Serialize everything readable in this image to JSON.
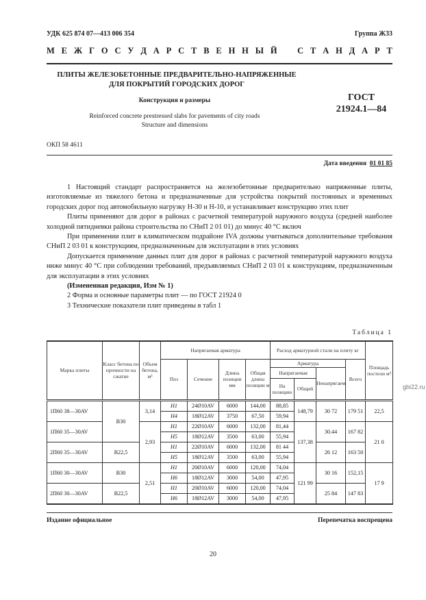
{
  "header": {
    "udk": "УДК 625 874 07—413 006 354",
    "group": "Группа Ж33",
    "standard_words": [
      "М",
      "Е",
      "Ж",
      "Г",
      "О",
      "С",
      "У",
      "Д",
      "А",
      "Р",
      "С",
      "Т",
      "В",
      "Е",
      "Н",
      "Н",
      "Ы",
      "Й",
      "",
      "",
      "С",
      "Т",
      "А",
      "Н",
      "Д",
      "А",
      "Р",
      "Т"
    ],
    "title_line1": "ПЛИТЫ ЖЕЛЕЗОБЕТОННЫЕ ПРЕДВАРИТЕЛЬНО-НАПРЯЖЕННЫЕ",
    "title_line2": "ДЛЯ ПОКРЫТИЙ ГОРОДСКИХ ДОРОГ",
    "subtitle": "Конструкция и размеры",
    "gost_label": "ГОСТ",
    "gost_number": "21924.1—84",
    "english_line1": "Reinforced concrete prestressed slabs for pavements of city roads",
    "english_line2": "Structure and dimensions",
    "okp": "ОКП 58 4611",
    "date_label": "Дата введения",
    "date_value": "01 01 85"
  },
  "body": {
    "p1": "1 Настоящий стандарт распространяется на железобетонные предварительно напряженные плиты, изготовляемые из тяжелого бетона и предназначенные для устройства покрытий постоянных и временных городских дорог под автомобильную нагрузку Н-30 и Н-10, и устанавливает конструкцию этих плит",
    "p2": "Плиты применяют для дорог в районах с расчетной температурой наружного воздуха (средней наиболее холодной пятидневки района строительства по СНиП 2 01 01) до минус 40 °С включ",
    "p3": "При применении плит в климатическом подрайоне IVA должны учитываться дополнительные требования СНиП 2 03 01 к конструкциям, предназначенным для эксплуатации в этих условиях",
    "p4": "Допускается применение данных плит для дорог в районах с расчетной температурой наружного воздуха ниже минус 40 °С при соблюдении требований, предъявляемых СНиП 2 03 01 к конструкциям, предназначенным для эксплуатации в этих условиях",
    "p5": "(Измененная редакция, Изм № 1)",
    "p6": "2 Форма и основные параметры плит — по ГОСТ 21924 0",
    "p7": "3 Технические показатели плит приведены в табл 1"
  },
  "table": {
    "caption": "Таблица 1",
    "headers": {
      "mark": "Марка плиты",
      "class": "Класс бетона по прочности на сжатие",
      "volume": "Объем бетона, м³",
      "prestressed": "Напрягаемая арматура",
      "consumption": "Расход арматурной стали на плиту кг",
      "area": "Площадь постели м²",
      "pos": "Поз",
      "section": "Сечение",
      "pos_length": "Длина позиции мм",
      "total_length": "Общая длина позиции м",
      "reinforcement": "Арматура",
      "total": "Всего",
      "prestressed_sub": "Напрягаемая",
      "non_prestressed": "Ненапрягаемая",
      "per_position": "На позицию",
      "common": "Общий"
    },
    "marks": [
      "1П60 38—30AV",
      "1П60 35—30AV",
      "2П60 35—30AV",
      "1П60 30—30AV",
      "2П60 30—30AV"
    ],
    "classes": [
      "B30",
      "B22,5",
      "B30",
      "B22,5"
    ],
    "volumes": [
      "3,14",
      "2,93",
      "2,51"
    ],
    "rows": [
      {
        "pos": "H1",
        "section": "24Ø10AV",
        "len": "6000",
        "total_len": "144,00",
        "per_pos": "88,85"
      },
      {
        "pos": "H4",
        "section": "18Ø12AV",
        "len": "3750",
        "total_len": "67,50",
        "per_pos": "59,94"
      },
      {
        "pos": "H1",
        "section": "22Ø10AV",
        "len": "6000",
        "total_len": "132,00",
        "per_pos": "81,44"
      },
      {
        "pos": "H5",
        "section": "18Ø12AV",
        "len": "3500",
        "total_len": "63,00",
        "per_pos": "55,94"
      },
      {
        "pos": "H1",
        "section": "22Ø10AV",
        "len": "6000",
        "total_len": "132,00",
        "per_pos": "81 44"
      },
      {
        "pos": "H5",
        "section": "18Ø12AV",
        "len": "3500",
        "total_len": "63,00",
        "per_pos": "55,94"
      },
      {
        "pos": "H1",
        "section": "20Ø10AV",
        "len": "6000",
        "total_len": "120,00",
        "per_pos": "74,04"
      },
      {
        "pos": "H6",
        "section": "18Ø12AV",
        "len": "3000",
        "total_len": "54,00",
        "per_pos": "47,95"
      },
      {
        "pos": "H1",
        "section": "20Ø10AV",
        "len": "6000",
        "total_len": "120,00",
        "per_pos": "74,04"
      },
      {
        "pos": "H6",
        "section": "18Ø12AV",
        "len": "3000",
        "total_len": "54,00",
        "per_pos": "47,95"
      }
    ],
    "common": [
      "148,79",
      "137,38",
      "121 99"
    ],
    "non_prestressed": [
      "30 72",
      "30.44",
      "26 12",
      "30 16",
      "25 84"
    ],
    "totals": [
      "179 51",
      "167 82",
      "163 50",
      "152,15",
      "147 83"
    ],
    "areas": [
      "22,5",
      "21 0",
      "17 9"
    ]
  },
  "footer": {
    "left": "Издание официальное",
    "right": "Перепечатка воспрещена",
    "page": "20"
  },
  "watermark": "gbi22.ru"
}
